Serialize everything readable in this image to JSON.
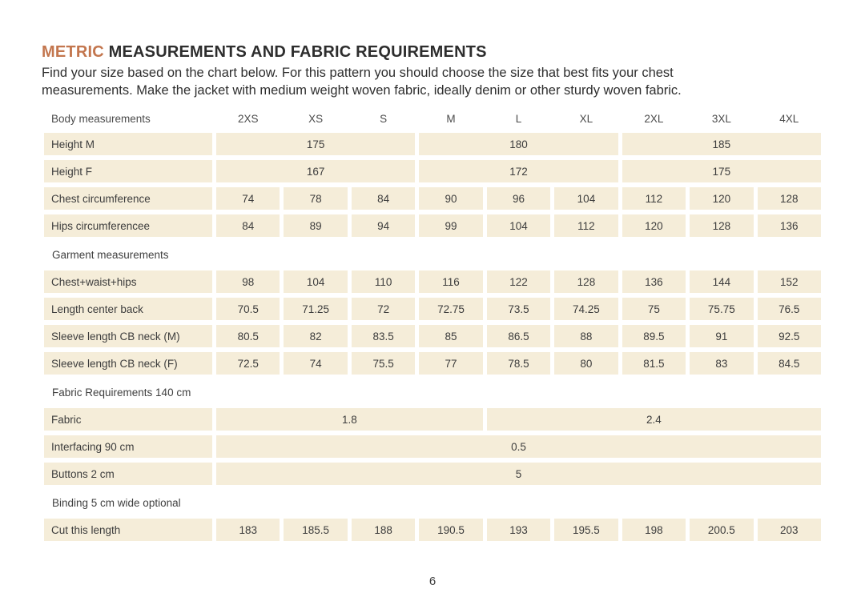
{
  "page": {
    "title": {
      "accent": "METRIC",
      "rest": " MEASUREMENTS AND FABRIC REQUIREMENTS"
    },
    "intro_lines": [
      "Find your size based on the chart below. For this pattern you should choose the size that best fits your chest",
      "measurements. Make the jacket with medium weight woven fabric, ideally denim or other sturdy woven fabric."
    ],
    "page_number": "6"
  },
  "colors": {
    "accent": "#c3764e",
    "cell_background": "#f5edd9",
    "body_text": "#2e2e2e",
    "table_text": "#3d3d3d"
  },
  "table": {
    "size_header": {
      "label": "Body measurements",
      "sizes": [
        "2XS",
        "XS",
        "S",
        "M",
        "L",
        "XL",
        "2XL",
        "3XL",
        "4XL"
      ]
    },
    "blocks": [
      {
        "type": "row",
        "label": "Height M",
        "cells": [
          {
            "v": "175",
            "span": 3
          },
          {
            "v": "180",
            "span": 3
          },
          {
            "v": "185",
            "span": 3
          }
        ]
      },
      {
        "type": "row",
        "label": "Height F",
        "cells": [
          {
            "v": "167",
            "span": 3
          },
          {
            "v": "172",
            "span": 3
          },
          {
            "v": "175",
            "span": 3
          }
        ]
      },
      {
        "type": "row",
        "label": "Chest circumference",
        "cells": [
          {
            "v": "74"
          },
          {
            "v": "78"
          },
          {
            "v": "84"
          },
          {
            "v": "90"
          },
          {
            "v": "96"
          },
          {
            "v": "104"
          },
          {
            "v": "112"
          },
          {
            "v": "120"
          },
          {
            "v": "128"
          }
        ]
      },
      {
        "type": "row",
        "label": "Hips circumferencee",
        "cells": [
          {
            "v": "84"
          },
          {
            "v": "89"
          },
          {
            "v": "94"
          },
          {
            "v": "99"
          },
          {
            "v": "104"
          },
          {
            "v": "112"
          },
          {
            "v": "120"
          },
          {
            "v": "128"
          },
          {
            "v": "136"
          }
        ]
      },
      {
        "type": "section",
        "label": "Garment measurements"
      },
      {
        "type": "row",
        "label": "Chest+waist+hips",
        "cells": [
          {
            "v": "98"
          },
          {
            "v": "104"
          },
          {
            "v": "110"
          },
          {
            "v": "116"
          },
          {
            "v": "122"
          },
          {
            "v": "128"
          },
          {
            "v": "136"
          },
          {
            "v": "144"
          },
          {
            "v": "152"
          }
        ]
      },
      {
        "type": "row",
        "label": "Length center back",
        "cells": [
          {
            "v": "70.5"
          },
          {
            "v": "71.25"
          },
          {
            "v": "72"
          },
          {
            "v": "72.75"
          },
          {
            "v": "73.5"
          },
          {
            "v": "74.25"
          },
          {
            "v": "75"
          },
          {
            "v": "75.75"
          },
          {
            "v": "76.5"
          }
        ]
      },
      {
        "type": "row",
        "label": "Sleeve length CB neck (M)",
        "cells": [
          {
            "v": "80.5"
          },
          {
            "v": "82"
          },
          {
            "v": "83.5"
          },
          {
            "v": "85"
          },
          {
            "v": "86.5"
          },
          {
            "v": "88"
          },
          {
            "v": "89.5"
          },
          {
            "v": "91"
          },
          {
            "v": "92.5"
          }
        ]
      },
      {
        "type": "row",
        "label": "Sleeve length CB neck (F)",
        "cells": [
          {
            "v": "72.5"
          },
          {
            "v": "74"
          },
          {
            "v": "75.5"
          },
          {
            "v": "77"
          },
          {
            "v": "78.5"
          },
          {
            "v": "80"
          },
          {
            "v": "81.5"
          },
          {
            "v": "83"
          },
          {
            "v": "84.5"
          }
        ]
      },
      {
        "type": "section",
        "label": "Fabric Requirements 140 cm"
      },
      {
        "type": "row",
        "label": "Fabric",
        "cells": [
          {
            "v": "1.8",
            "span": 4
          },
          {
            "v": "2.4",
            "span": 5
          }
        ]
      },
      {
        "type": "row",
        "label": "Interfacing 90 cm",
        "cells": [
          {
            "v": "0.5",
            "span": 9
          }
        ]
      },
      {
        "type": "row",
        "label": "Buttons 2 cm",
        "cells": [
          {
            "v": "5",
            "span": 9
          }
        ]
      },
      {
        "type": "section",
        "label": "Binding 5 cm wide optional"
      },
      {
        "type": "row",
        "label": "Cut this length",
        "cells": [
          {
            "v": "183"
          },
          {
            "v": "185.5"
          },
          {
            "v": "188"
          },
          {
            "v": "190.5"
          },
          {
            "v": "193"
          },
          {
            "v": "195.5"
          },
          {
            "v": "198"
          },
          {
            "v": "200.5"
          },
          {
            "v": "203"
          }
        ]
      }
    ]
  }
}
